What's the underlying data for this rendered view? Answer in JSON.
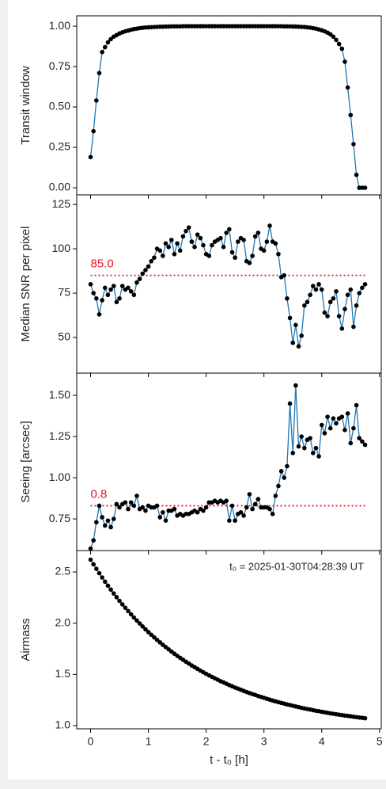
{
  "chart_data": [
    {
      "type": "line",
      "ylabel": "Transit window",
      "line_color": "#1f77b4",
      "marker_color": "#000000",
      "x": [
        0,
        0.05,
        0.1,
        0.15,
        0.2,
        0.25,
        0.3,
        0.35,
        0.4,
        0.45,
        0.5,
        0.55,
        0.6,
        0.65,
        0.7,
        0.75,
        0.8,
        0.85,
        0.9,
        0.95,
        1,
        1.05,
        1.1,
        1.15,
        1.2,
        1.25,
        1.3,
        1.35,
        1.4,
        1.45,
        1.5,
        1.55,
        1.6,
        1.65,
        1.7,
        1.75,
        1.8,
        1.85,
        1.9,
        1.95,
        2,
        2.05,
        2.1,
        2.15,
        2.2,
        2.25,
        2.3,
        2.35,
        2.4,
        2.45,
        2.5,
        2.55,
        2.6,
        2.65,
        2.7,
        2.75,
        2.8,
        2.85,
        2.9,
        2.95,
        3,
        3.05,
        3.1,
        3.15,
        3.2,
        3.25,
        3.3,
        3.35,
        3.4,
        3.45,
        3.5,
        3.55,
        3.6,
        3.65,
        3.7,
        3.75,
        3.8,
        3.85,
        3.9,
        3.95,
        4,
        4.05,
        4.1,
        4.15,
        4.2,
        4.25,
        4.3,
        4.35,
        4.4,
        4.45,
        4.5,
        4.55,
        4.6,
        4.65,
        4.7,
        4.75
      ],
      "values": [
        0.19,
        0.35,
        0.54,
        0.71,
        0.84,
        0.87,
        0.9,
        0.92,
        0.935,
        0.945,
        0.955,
        0.962,
        0.968,
        0.973,
        0.978,
        0.982,
        0.985,
        0.988,
        0.99,
        0.992,
        0.993,
        0.994,
        0.995,
        0.996,
        0.997,
        0.997,
        0.998,
        0.998,
        0.999,
        0.999,
        0.999,
        0.999,
        1,
        1,
        1,
        1,
        1,
        1,
        1,
        1,
        1,
        1,
        1,
        1,
        1,
        1,
        1,
        1,
        1,
        1,
        1,
        1,
        1,
        1,
        1,
        1,
        1,
        1,
        1,
        1,
        1,
        1,
        1,
        1,
        1,
        1,
        1,
        0.999,
        0.999,
        0.999,
        0.998,
        0.998,
        0.997,
        0.996,
        0.995,
        0.993,
        0.991,
        0.988,
        0.985,
        0.98,
        0.975,
        0.968,
        0.96,
        0.95,
        0.935,
        0.915,
        0.89,
        0.86,
        0.78,
        0.62,
        0.45,
        0.27,
        0.08,
        0,
        0,
        0
      ],
      "xlim": [
        -0.24,
        5.03
      ],
      "xticks": [
        0,
        1,
        2,
        3,
        4,
        5
      ],
      "ylim": [
        -0.044,
        1.064
      ],
      "yticks": [
        {
          "value": 0,
          "label": "0.00"
        },
        {
          "value": 0.25,
          "label": "0.25"
        },
        {
          "value": 0.5,
          "label": "0.50"
        },
        {
          "value": 0.75,
          "label": "0.75"
        },
        {
          "value": 1,
          "label": "1.00"
        }
      ]
    },
    {
      "type": "line",
      "ylabel": "Median SNR per pixel",
      "line_color": "#1f77b4",
      "marker_color": "#000000",
      "x": [
        0,
        0.05,
        0.1,
        0.15,
        0.2,
        0.25,
        0.3,
        0.35,
        0.4,
        0.45,
        0.5,
        0.55,
        0.6,
        0.65,
        0.7,
        0.75,
        0.8,
        0.85,
        0.9,
        0.95,
        1,
        1.05,
        1.1,
        1.15,
        1.2,
        1.25,
        1.3,
        1.35,
        1.4,
        1.45,
        1.5,
        1.55,
        1.6,
        1.65,
        1.7,
        1.75,
        1.8,
        1.85,
        1.9,
        1.95,
        2,
        2.05,
        2.1,
        2.15,
        2.2,
        2.25,
        2.3,
        2.35,
        2.4,
        2.45,
        2.5,
        2.55,
        2.6,
        2.65,
        2.7,
        2.75,
        2.8,
        2.85,
        2.9,
        2.95,
        3,
        3.05,
        3.1,
        3.15,
        3.2,
        3.25,
        3.3,
        3.35,
        3.4,
        3.45,
        3.5,
        3.55,
        3.6,
        3.65,
        3.7,
        3.75,
        3.8,
        3.85,
        3.9,
        3.95,
        4,
        4.05,
        4.1,
        4.15,
        4.2,
        4.25,
        4.3,
        4.35,
        4.4,
        4.45,
        4.5,
        4.55,
        4.6,
        4.65,
        4.7,
        4.75
      ],
      "values": [
        80,
        75,
        72,
        63,
        71,
        78,
        74,
        77,
        79,
        70,
        72,
        79,
        77,
        78,
        76,
        74,
        81,
        83,
        86,
        88,
        90,
        93,
        95,
        100,
        99,
        96,
        103,
        101,
        105,
        97,
        103,
        99,
        107,
        110,
        112,
        104,
        101,
        108,
        106,
        102,
        97,
        96,
        102,
        104,
        105,
        106,
        101,
        109,
        111,
        98,
        95,
        104,
        106,
        105,
        93,
        92,
        96,
        107,
        109,
        100,
        99,
        104,
        113,
        104,
        103,
        97,
        84,
        85,
        72,
        61,
        47,
        57,
        45,
        51,
        68,
        70,
        74,
        79,
        77,
        80,
        77,
        64,
        62,
        70,
        72,
        76,
        62,
        55,
        66,
        74,
        77,
        56,
        68,
        75,
        78,
        80
      ],
      "threshold": {
        "value": 85,
        "label": "85.0",
        "color": "#e8141a"
      },
      "xlim": [
        -0.24,
        5.03
      ],
      "xticks": [
        0,
        1,
        2,
        3,
        4,
        5
      ],
      "ylim": [
        29.9,
        130.4
      ],
      "yticks": [
        50,
        75,
        100,
        125
      ]
    },
    {
      "type": "line",
      "ylabel": "Seeing [arcsec]",
      "line_color": "#1f77b4",
      "marker_color": "#000000",
      "x": [
        0,
        0.05,
        0.1,
        0.15,
        0.2,
        0.25,
        0.3,
        0.35,
        0.4,
        0.45,
        0.5,
        0.55,
        0.6,
        0.65,
        0.7,
        0.75,
        0.8,
        0.85,
        0.9,
        0.95,
        1,
        1.05,
        1.1,
        1.15,
        1.2,
        1.25,
        1.3,
        1.35,
        1.4,
        1.45,
        1.5,
        1.55,
        1.6,
        1.65,
        1.7,
        1.75,
        1.8,
        1.85,
        1.9,
        1.95,
        2,
        2.05,
        2.1,
        2.15,
        2.2,
        2.25,
        2.3,
        2.35,
        2.4,
        2.45,
        2.5,
        2.55,
        2.6,
        2.65,
        2.7,
        2.75,
        2.8,
        2.85,
        2.9,
        2.95,
        3,
        3.05,
        3.1,
        3.15,
        3.2,
        3.25,
        3.3,
        3.35,
        3.4,
        3.45,
        3.5,
        3.55,
        3.6,
        3.65,
        3.7,
        3.75,
        3.8,
        3.85,
        3.9,
        3.95,
        4,
        4.05,
        4.1,
        4.15,
        4.2,
        4.25,
        4.3,
        4.35,
        4.4,
        4.45,
        4.5,
        4.55,
        4.6,
        4.65,
        4.7,
        4.75
      ],
      "values": [
        0.57,
        0.62,
        0.73,
        0.83,
        0.76,
        0.71,
        0.74,
        0.7,
        0.75,
        0.84,
        0.82,
        0.84,
        0.85,
        0.81,
        0.85,
        0.83,
        0.89,
        0.81,
        0.82,
        0.8,
        0.83,
        0.82,
        0.82,
        0.83,
        0.76,
        0.79,
        0.74,
        0.8,
        0.8,
        0.81,
        0.77,
        0.78,
        0.77,
        0.78,
        0.78,
        0.79,
        0.8,
        0.79,
        0.81,
        0.8,
        0.82,
        0.85,
        0.85,
        0.86,
        0.85,
        0.86,
        0.85,
        0.86,
        0.74,
        0.83,
        0.74,
        0.78,
        0.79,
        0.77,
        0.82,
        0.9,
        0.81,
        0.84,
        0.87,
        0.82,
        0.82,
        0.82,
        0.81,
        0.78,
        0.89,
        0.95,
        1.04,
        1.0,
        1.07,
        1.45,
        1.15,
        1.56,
        1.19,
        1.25,
        1.18,
        1.23,
        1.24,
        1.15,
        1.18,
        1.13,
        1.32,
        1.27,
        1.37,
        1.3,
        1.36,
        1.33,
        1.36,
        1.37,
        1.29,
        1.39,
        1.21,
        1.3,
        1.44,
        1.24,
        1.22,
        1.2
      ],
      "threshold": {
        "value": 0.83,
        "label": "0.8",
        "color": "#e8141a"
      },
      "xlim": [
        -0.24,
        5.03
      ],
      "xticks": [
        0,
        1,
        2,
        3,
        4,
        5
      ],
      "ylim": [
        0.558,
        1.635
      ],
      "yticks": [
        {
          "value": 0.75,
          "label": "0.75"
        },
        {
          "value": 1,
          "label": "1.00"
        },
        {
          "value": 1.25,
          "label": "1.25"
        },
        {
          "value": 1.5,
          "label": "1.50"
        }
      ]
    },
    {
      "type": "line",
      "ylabel": "Airmass",
      "xlabel": "t - t₀ [h]",
      "annotation": "t₀ = 2025-01-30T04:28:39 UT",
      "line_color": "#1f77b4",
      "marker_color": "#000000",
      "x": [
        0,
        0.05,
        0.1,
        0.15,
        0.2,
        0.25,
        0.3,
        0.35,
        0.4,
        0.45,
        0.5,
        0.55,
        0.6,
        0.65,
        0.7,
        0.75,
        0.8,
        0.85,
        0.9,
        0.95,
        1,
        1.05,
        1.1,
        1.15,
        1.2,
        1.25,
        1.3,
        1.35,
        1.4,
        1.45,
        1.5,
        1.55,
        1.6,
        1.65,
        1.7,
        1.75,
        1.8,
        1.85,
        1.9,
        1.95,
        2,
        2.05,
        2.1,
        2.15,
        2.2,
        2.25,
        2.3,
        2.35,
        2.4,
        2.45,
        2.5,
        2.55,
        2.6,
        2.65,
        2.7,
        2.75,
        2.8,
        2.85,
        2.9,
        2.95,
        3,
        3.05,
        3.1,
        3.15,
        3.2,
        3.25,
        3.3,
        3.35,
        3.4,
        3.45,
        3.5,
        3.55,
        3.6,
        3.65,
        3.7,
        3.75,
        3.8,
        3.85,
        3.9,
        3.95,
        4,
        4.05,
        4.1,
        4.15,
        4.2,
        4.25,
        4.3,
        4.35,
        4.4,
        4.45,
        4.5,
        4.55,
        4.6,
        4.65,
        4.7,
        4.75
      ],
      "values": [
        2.62,
        2.575,
        2.531,
        2.488,
        2.446,
        2.405,
        2.366,
        2.328,
        2.29,
        2.254,
        2.218,
        2.184,
        2.151,
        2.118,
        2.086,
        2.055,
        2.026,
        1.997,
        1.968,
        1.94,
        1.913,
        1.887,
        1.862,
        1.837,
        1.813,
        1.789,
        1.767,
        1.745,
        1.723,
        1.702,
        1.681,
        1.662,
        1.643,
        1.624,
        1.606,
        1.587,
        1.571,
        1.554,
        1.537,
        1.521,
        1.505,
        1.491,
        1.476,
        1.462,
        1.448,
        1.434,
        1.422,
        1.409,
        1.396,
        1.384,
        1.372,
        1.361,
        1.35,
        1.339,
        1.328,
        1.318,
        1.308,
        1.299,
        1.289,
        1.28,
        1.271,
        1.262,
        1.254,
        1.245,
        1.237,
        1.229,
        1.222,
        1.215,
        1.207,
        1.201,
        1.194,
        1.187,
        1.181,
        1.174,
        1.168,
        1.162,
        1.157,
        1.151,
        1.145,
        1.141,
        1.135,
        1.13,
        1.125,
        1.12,
        1.116,
        1.111,
        1.107,
        1.103,
        1.098,
        1.095,
        1.091,
        1.087,
        1.083,
        1.079,
        1.076,
        1.072
      ],
      "xlim": [
        -0.24,
        5.03
      ],
      "xticks": [
        0,
        1,
        2,
        3,
        4,
        5
      ],
      "ylim": [
        0.969,
        2.709
      ],
      "yticks": [
        {
          "value": 1,
          "label": "1.0"
        },
        {
          "value": 1.5,
          "label": "1.5"
        },
        {
          "value": 2,
          "label": "2.0"
        },
        {
          "value": 2.5,
          "label": "2.5"
        }
      ]
    }
  ]
}
